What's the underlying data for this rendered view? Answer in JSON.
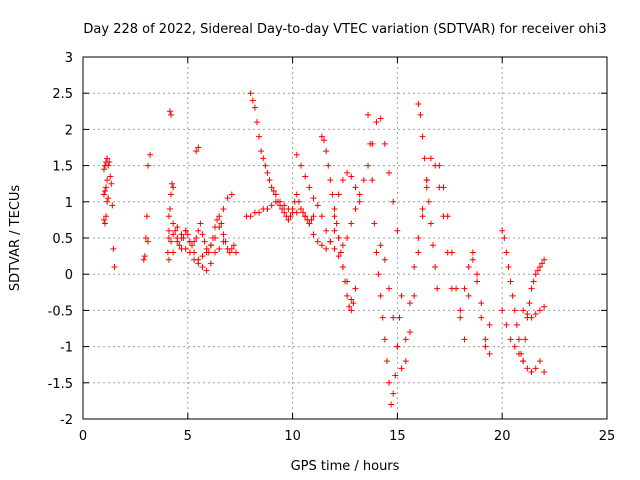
{
  "chart_data": {
    "type": "scatter",
    "title": "Day 228 of 2022, Sidereal Day-to-day VTEC variation (SDTVAR) for receiver ohi3",
    "xlabel": "GPS time / hours",
    "ylabel": "SDTVAR / TECUs",
    "xlim": [
      0,
      25
    ],
    "ylim": [
      -2,
      3
    ],
    "xticks": [
      0,
      5,
      10,
      15,
      20,
      25
    ],
    "yticks": [
      -2,
      -1.5,
      -1,
      -0.5,
      0,
      0.5,
      1,
      1.5,
      2,
      2.5,
      3
    ],
    "xtick_labels": [
      "0",
      "5",
      "10",
      "15",
      "20",
      "25"
    ],
    "ytick_labels": [
      "-2",
      "-1.5",
      "-1",
      "-0.5",
      "0",
      "0.5",
      "1",
      "1.5",
      "2",
      "2.5",
      "3"
    ],
    "grid": true,
    "marker": "+",
    "series": [
      {
        "name": "SDTVAR",
        "color": "#ff0000",
        "x": [
          1.0,
          1.05,
          1.1,
          1.15,
          1.2,
          1.25,
          1.0,
          1.05,
          1.1,
          1.15,
          1.2,
          1.0,
          1.05,
          1.1,
          1.15,
          1.5,
          1.45,
          1.4,
          1.35,
          1.3,
          2.9,
          2.95,
          3.0,
          3.1,
          3.2,
          3.1,
          3.05,
          4.05,
          4.1,
          4.15,
          4.2,
          4.1,
          4.15,
          4.2,
          4.25,
          4.3,
          4.2,
          4.3,
          4.4,
          4.5,
          4.6,
          4.7,
          4.8,
          4.9,
          5.0,
          5.1,
          5.2,
          5.3,
          5.4,
          5.5,
          5.6,
          5.7,
          5.8,
          5.9,
          6.0,
          6.1,
          6.2,
          6.3,
          6.4,
          6.5,
          6.6,
          6.7,
          6.8,
          6.9,
          7.0,
          7.1,
          7.2,
          7.3,
          4.1,
          4.3,
          4.5,
          4.7,
          4.9,
          5.1,
          5.3,
          5.5,
          5.7,
          5.9,
          6.1,
          6.3,
          6.5,
          6.7,
          6.9,
          7.1,
          4.1,
          4.3,
          4.5,
          4.7,
          4.9,
          5.1,
          5.3,
          5.5,
          5.7,
          5.9,
          6.1,
          6.3,
          6.5,
          6.7,
          5.4,
          5.5,
          8.0,
          8.1,
          8.2,
          8.3,
          8.4,
          8.5,
          8.6,
          8.7,
          8.8,
          8.9,
          9.0,
          9.1,
          9.2,
          9.3,
          9.4,
          9.5,
          9.6,
          9.7,
          9.8,
          9.9,
          10.0,
          10.1,
          10.2,
          10.3,
          10.4,
          10.5,
          10.6,
          10.7,
          10.8,
          10.9,
          11.0,
          7.8,
          8.0,
          8.2,
          8.4,
          8.6,
          8.8,
          9.0,
          9.2,
          9.4,
          9.6,
          9.8,
          10.0,
          10.2,
          10.4,
          10.6,
          10.8,
          11.0,
          11.2,
          11.4,
          11.6,
          11.8,
          12.0,
          12.2,
          12.4,
          12.6,
          12.8,
          13.0,
          13.2,
          10.2,
          10.4,
          10.6,
          10.8,
          11.0,
          11.2,
          11.4,
          11.6,
          11.8,
          12.0,
          12.2,
          12.4,
          12.6,
          12.8,
          11.4,
          11.5,
          11.6,
          11.7,
          11.8,
          11.9,
          12.0,
          12.1,
          12.2,
          12.3,
          12.4,
          12.5,
          12.6,
          12.7,
          12.8,
          12.9,
          13.0,
          12.0,
          12.2,
          12.4,
          12.6,
          12.8,
          13.0,
          13.2,
          13.4,
          13.6,
          13.8,
          14.0,
          14.2,
          14.4,
          14.6,
          14.8,
          15.0,
          13.6,
          13.7,
          13.8,
          13.9,
          14.0,
          14.1,
          14.2,
          14.3,
          14.4,
          14.5,
          14.6,
          14.7,
          14.8,
          14.9,
          15.0,
          15.1,
          15.2,
          14.2,
          14.4,
          14.6,
          14.8,
          15.0,
          15.2,
          15.4,
          15.6,
          15.8,
          16.0,
          16.2,
          16.4,
          15.4,
          15.6,
          15.8,
          16.0,
          16.2,
          16.4,
          16.6,
          16.8,
          17.0,
          17.2,
          17.4,
          17.6,
          16.0,
          16.1,
          16.2,
          16.3,
          16.4,
          16.5,
          16.6,
          16.7,
          16.8,
          16.9,
          17.0,
          17.2,
          17.4,
          17.6,
          17.8,
          18.0,
          18.2,
          18.4,
          18.6,
          18.8,
          19.0,
          19.2,
          19.4,
          18.0,
          18.2,
          18.4,
          18.6,
          18.8,
          19.0,
          19.2,
          19.4,
          20.0,
          20.1,
          20.2,
          20.3,
          20.4,
          20.5,
          20.6,
          20.7,
          20.8,
          20.9,
          21.0,
          21.1,
          21.2,
          21.3,
          21.4,
          21.5,
          21.6,
          21.7,
          21.8,
          21.9,
          22.0,
          20.0,
          20.2,
          20.4,
          20.6,
          20.8,
          21.0,
          21.2,
          21.4,
          21.6,
          21.8,
          22.0,
          21.0,
          21.2,
          21.4,
          21.6,
          21.8,
          22.0
        ],
        "y": [
          1.1,
          1.15,
          1.2,
          1.3,
          1.5,
          1.55,
          0.75,
          0.7,
          0.8,
          1.0,
          1.05,
          1.45,
          1.5,
          1.55,
          1.6,
          0.1,
          0.35,
          0.95,
          1.25,
          1.35,
          0.2,
          0.25,
          0.5,
          0.45,
          1.65,
          1.5,
          0.8,
          0.3,
          0.5,
          2.25,
          2.2,
          0.6,
          0.9,
          1.1,
          1.25,
          1.2,
          0.45,
          0.55,
          0.6,
          0.5,
          0.4,
          0.35,
          0.5,
          0.6,
          0.55,
          0.45,
          0.4,
          0.45,
          0.5,
          0.6,
          0.7,
          0.55,
          0.45,
          0.35,
          0.3,
          0.4,
          0.5,
          0.65,
          0.75,
          0.8,
          0.7,
          0.55,
          0.45,
          0.35,
          0.3,
          0.35,
          0.4,
          0.3,
          0.8,
          0.7,
          0.65,
          0.5,
          0.35,
          0.3,
          0.2,
          0.15,
          0.25,
          0.3,
          0.4,
          0.5,
          0.65,
          0.9,
          1.05,
          1.1,
          0.2,
          0.3,
          0.45,
          0.55,
          0.6,
          0.45,
          0.3,
          0.2,
          0.1,
          0.05,
          0.15,
          0.3,
          0.35,
          0.45,
          1.7,
          1.75,
          2.5,
          2.4,
          2.3,
          2.1,
          1.9,
          1.7,
          1.6,
          1.5,
          1.4,
          1.3,
          1.2,
          1.15,
          1.1,
          1.0,
          0.95,
          0.9,
          0.85,
          0.8,
          0.75,
          0.8,
          0.9,
          1.0,
          1.1,
          1.0,
          0.9,
          0.85,
          0.8,
          0.75,
          0.7,
          0.75,
          0.8,
          0.8,
          0.8,
          0.85,
          0.85,
          0.9,
          0.9,
          0.95,
          1.0,
          1.0,
          0.95,
          0.9,
          0.85,
          0.85,
          0.9,
          0.8,
          0.7,
          0.55,
          0.45,
          0.4,
          0.35,
          0.45,
          0.8,
          1.1,
          1.3,
          1.4,
          1.35,
          1.2,
          1.0,
          1.65,
          1.5,
          1.35,
          1.2,
          1.05,
          0.95,
          0.8,
          0.6,
          0.45,
          0.35,
          0.25,
          0.1,
          -0.1,
          -0.35,
          1.9,
          1.85,
          1.7,
          1.5,
          1.3,
          1.1,
          0.9,
          0.7,
          0.5,
          0.3,
          0.1,
          -0.1,
          -0.3,
          -0.45,
          -0.5,
          -0.4,
          -0.2,
          0.6,
          0.5,
          0.4,
          0.5,
          0.7,
          0.9,
          1.1,
          1.3,
          1.5,
          1.8,
          2.1,
          2.15,
          1.8,
          1.4,
          1.0,
          0.6,
          2.2,
          1.8,
          1.3,
          0.7,
          0.3,
          0.0,
          -0.3,
          -0.6,
          -0.9,
          -1.2,
          -1.5,
          -1.8,
          -1.65,
          -1.4,
          -1.0,
          -0.6,
          -0.3,
          0.4,
          0.2,
          -0.2,
          -0.6,
          -1.0,
          -1.3,
          -0.9,
          -0.4,
          0.1,
          0.5,
          0.9,
          1.2,
          -1.2,
          -0.8,
          -0.3,
          0.3,
          0.8,
          1.3,
          1.6,
          1.5,
          1.2,
          0.8,
          0.3,
          -0.2,
          2.35,
          2.2,
          1.9,
          1.6,
          1.3,
          1.0,
          0.7,
          0.4,
          0.1,
          -0.2,
          1.5,
          1.2,
          0.8,
          0.3,
          -0.2,
          -0.6,
          -0.9,
          -0.3,
          0.2,
          -0.1,
          -0.4,
          -0.9,
          -1.1,
          -0.5,
          -0.2,
          0.1,
          0.3,
          0.0,
          -0.6,
          -1.0,
          -0.7,
          0.6,
          0.5,
          0.3,
          0.1,
          -0.1,
          -0.3,
          -0.5,
          -0.7,
          -0.9,
          -1.1,
          -1.2,
          -0.9,
          -0.6,
          -0.4,
          -0.2,
          -0.1,
          0.0,
          0.05,
          0.1,
          0.15,
          0.2,
          -0.5,
          -0.7,
          -0.9,
          -1.0,
          -1.1,
          -1.2,
          -1.3,
          -1.35,
          -1.3,
          -1.2,
          -1.35,
          -0.5,
          -0.55,
          -0.6,
          -0.55,
          -0.5,
          -0.45
        ]
      }
    ]
  }
}
